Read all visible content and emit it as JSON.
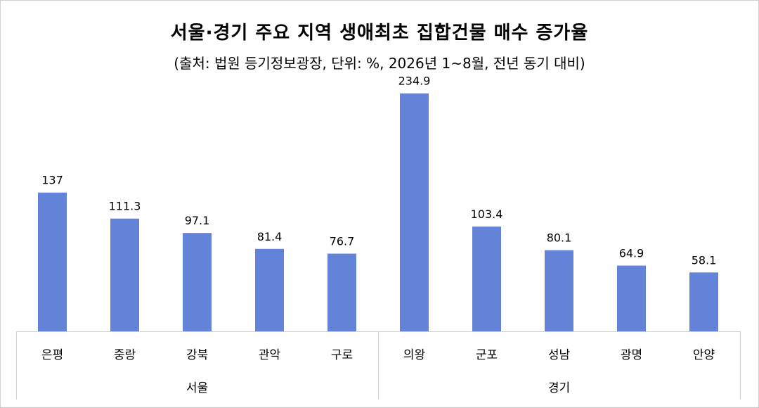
{
  "chart_data": {
    "type": "bar",
    "title": "서울·경기 주요 지역 생애최초 집합건물 매수 증가율",
    "subtitle": "(출처: 법원 등기정보광장, 단위: %, 2026년 1~8월, 전년 동기 대비)",
    "groups": [
      {
        "name": "서울",
        "categories": [
          "은평",
          "중랑",
          "강북",
          "관악",
          "구로"
        ],
        "values": [
          137,
          111.3,
          97.1,
          81.4,
          76.7
        ]
      },
      {
        "name": "경기",
        "categories": [
          "의왕",
          "군포",
          "성남",
          "광명",
          "안양"
        ],
        "values": [
          234.9,
          103.4,
          80.1,
          64.9,
          58.1
        ]
      }
    ],
    "value_labels": [
      "137",
      "111.3",
      "97.1",
      "81.4",
      "76.7",
      "234.9",
      "103.4",
      "80.1",
      "64.9",
      "58.1"
    ],
    "ylim": [
      0,
      250
    ],
    "grid": false,
    "legend": "none",
    "colors": {
      "bar": "#6383D9",
      "axis": "#d0d0d0"
    }
  }
}
